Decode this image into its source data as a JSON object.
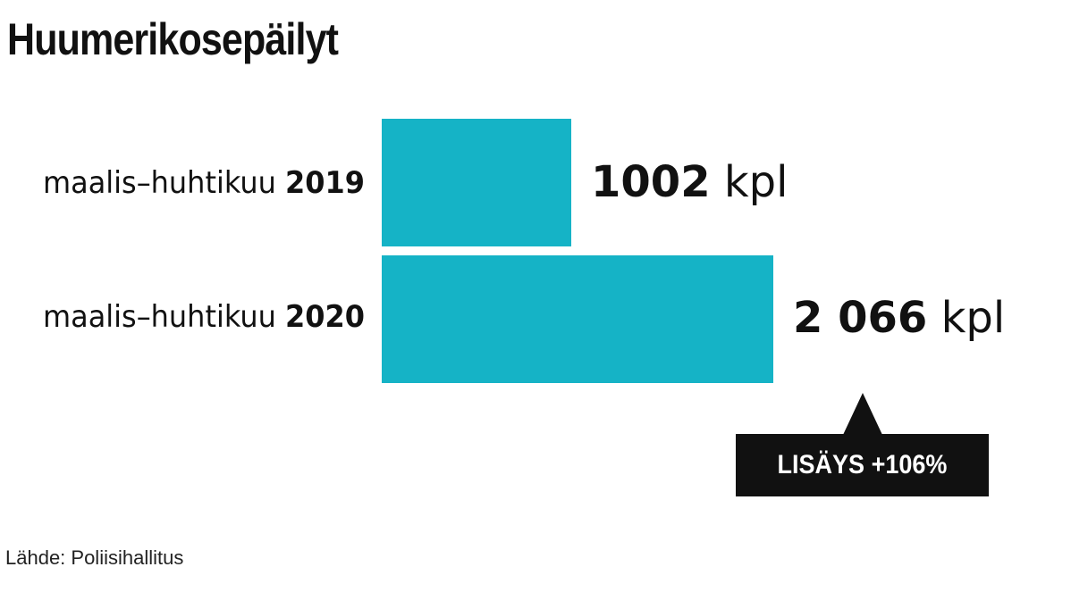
{
  "chart_data": {
    "type": "bar",
    "orientation": "horizontal",
    "title": "Huumerikosepäilyt",
    "categories": [
      {
        "prefix": "maalis–huhtikuu",
        "year": "2019"
      },
      {
        "prefix": "maalis–huhtikuu",
        "year": "2020"
      }
    ],
    "values": [
      1002,
      2066
    ],
    "value_labels": [
      {
        "number": "1002",
        "unit": "kpl"
      },
      {
        "number": "2 066",
        "unit": "kpl"
      }
    ],
    "bar_color": "#15b3c6",
    "grid": false,
    "annotation": "LISÄYS +106%",
    "source": "Lähde: Poliisihallitus"
  }
}
